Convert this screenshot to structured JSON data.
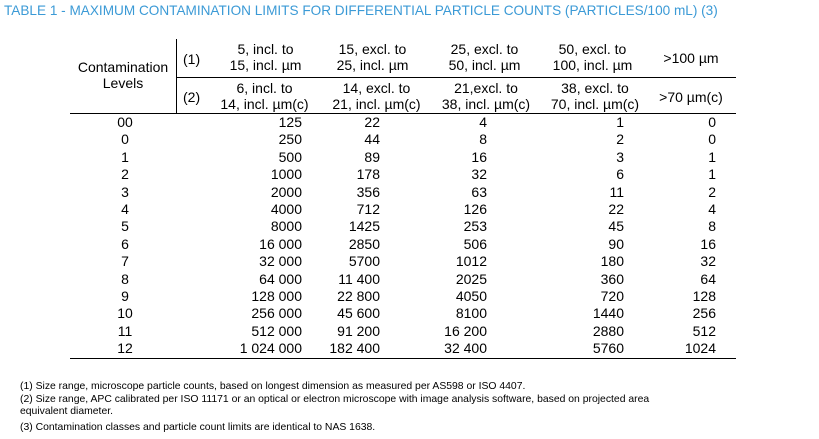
{
  "title": "TABLE 1 - MAXIMUM CONTAMINATION LIMITS FOR DIFFERENTIAL PARTICLE COUNTS (PARTICLES/100 mL) (3)",
  "header": {
    "row_label": [
      "Contamination",
      "Levels"
    ],
    "row1_marker": "(1)",
    "row2_marker": "(2)",
    "row1": [
      [
        "5, incl. to",
        "15, incl. µm"
      ],
      [
        "15, excl. to",
        "25, incl. µm"
      ],
      [
        "25, excl. to",
        "50, incl. µm"
      ],
      [
        "50, excl. to",
        "100, incl. µm"
      ],
      [
        ">100 µm"
      ]
    ],
    "row2": [
      [
        "6, incl. to",
        "14, incl. µm(c)"
      ],
      [
        "14, excl. to",
        "21, incl. µm(c)"
      ],
      [
        "21,excl. to",
        "38, incl. µm(c)"
      ],
      [
        "38, excl. to",
        "70, incl. µm(c)"
      ],
      [
        ">70 µm(c)"
      ]
    ]
  },
  "rows": [
    [
      "00",
      "125",
      "22",
      "4",
      "1",
      "0"
    ],
    [
      "0",
      "250",
      "44",
      "8",
      "2",
      "0"
    ],
    [
      "1",
      "500",
      "89",
      "16",
      "3",
      "1"
    ],
    [
      "2",
      "1000",
      "178",
      "32",
      "6",
      "1"
    ],
    [
      "3",
      "2000",
      "356",
      "63",
      "11",
      "2"
    ],
    [
      "4",
      "4000",
      "712",
      "126",
      "22",
      "4"
    ],
    [
      "5",
      "8000",
      "1425",
      "253",
      "45",
      "8"
    ],
    [
      "6",
      "16 000",
      "2850",
      "506",
      "90",
      "16"
    ],
    [
      "7",
      "32 000",
      "5700",
      "1012",
      "180",
      "32"
    ],
    [
      "8",
      "64 000",
      "11 400",
      "2025",
      "360",
      "64"
    ],
    [
      "9",
      "128 000",
      "22 800",
      "4050",
      "720",
      "128"
    ],
    [
      "10",
      "256 000",
      "45 600",
      "8100",
      "1440",
      "256"
    ],
    [
      "11",
      "512 000",
      "91 200",
      "16 200",
      "2880",
      "512"
    ],
    [
      "12",
      "1 024 000",
      "182 400",
      "32 400",
      "5760",
      "1024"
    ]
  ],
  "footnotes": [
    "(1)  Size range, microscope particle counts, based on longest dimension as measured per AS598 or ISO 4407.",
    "(2)  Size range, APC calibrated per ISO 11171 or an optical or electron microscope with image analysis software, based on projected area",
    "equivalent diameter.",
    "(3)  Contamination classes and particle count limits are identical to NAS 1638."
  ],
  "colors": {
    "title": "#3b9ad6",
    "text": "#000000",
    "rule": "#000000"
  }
}
